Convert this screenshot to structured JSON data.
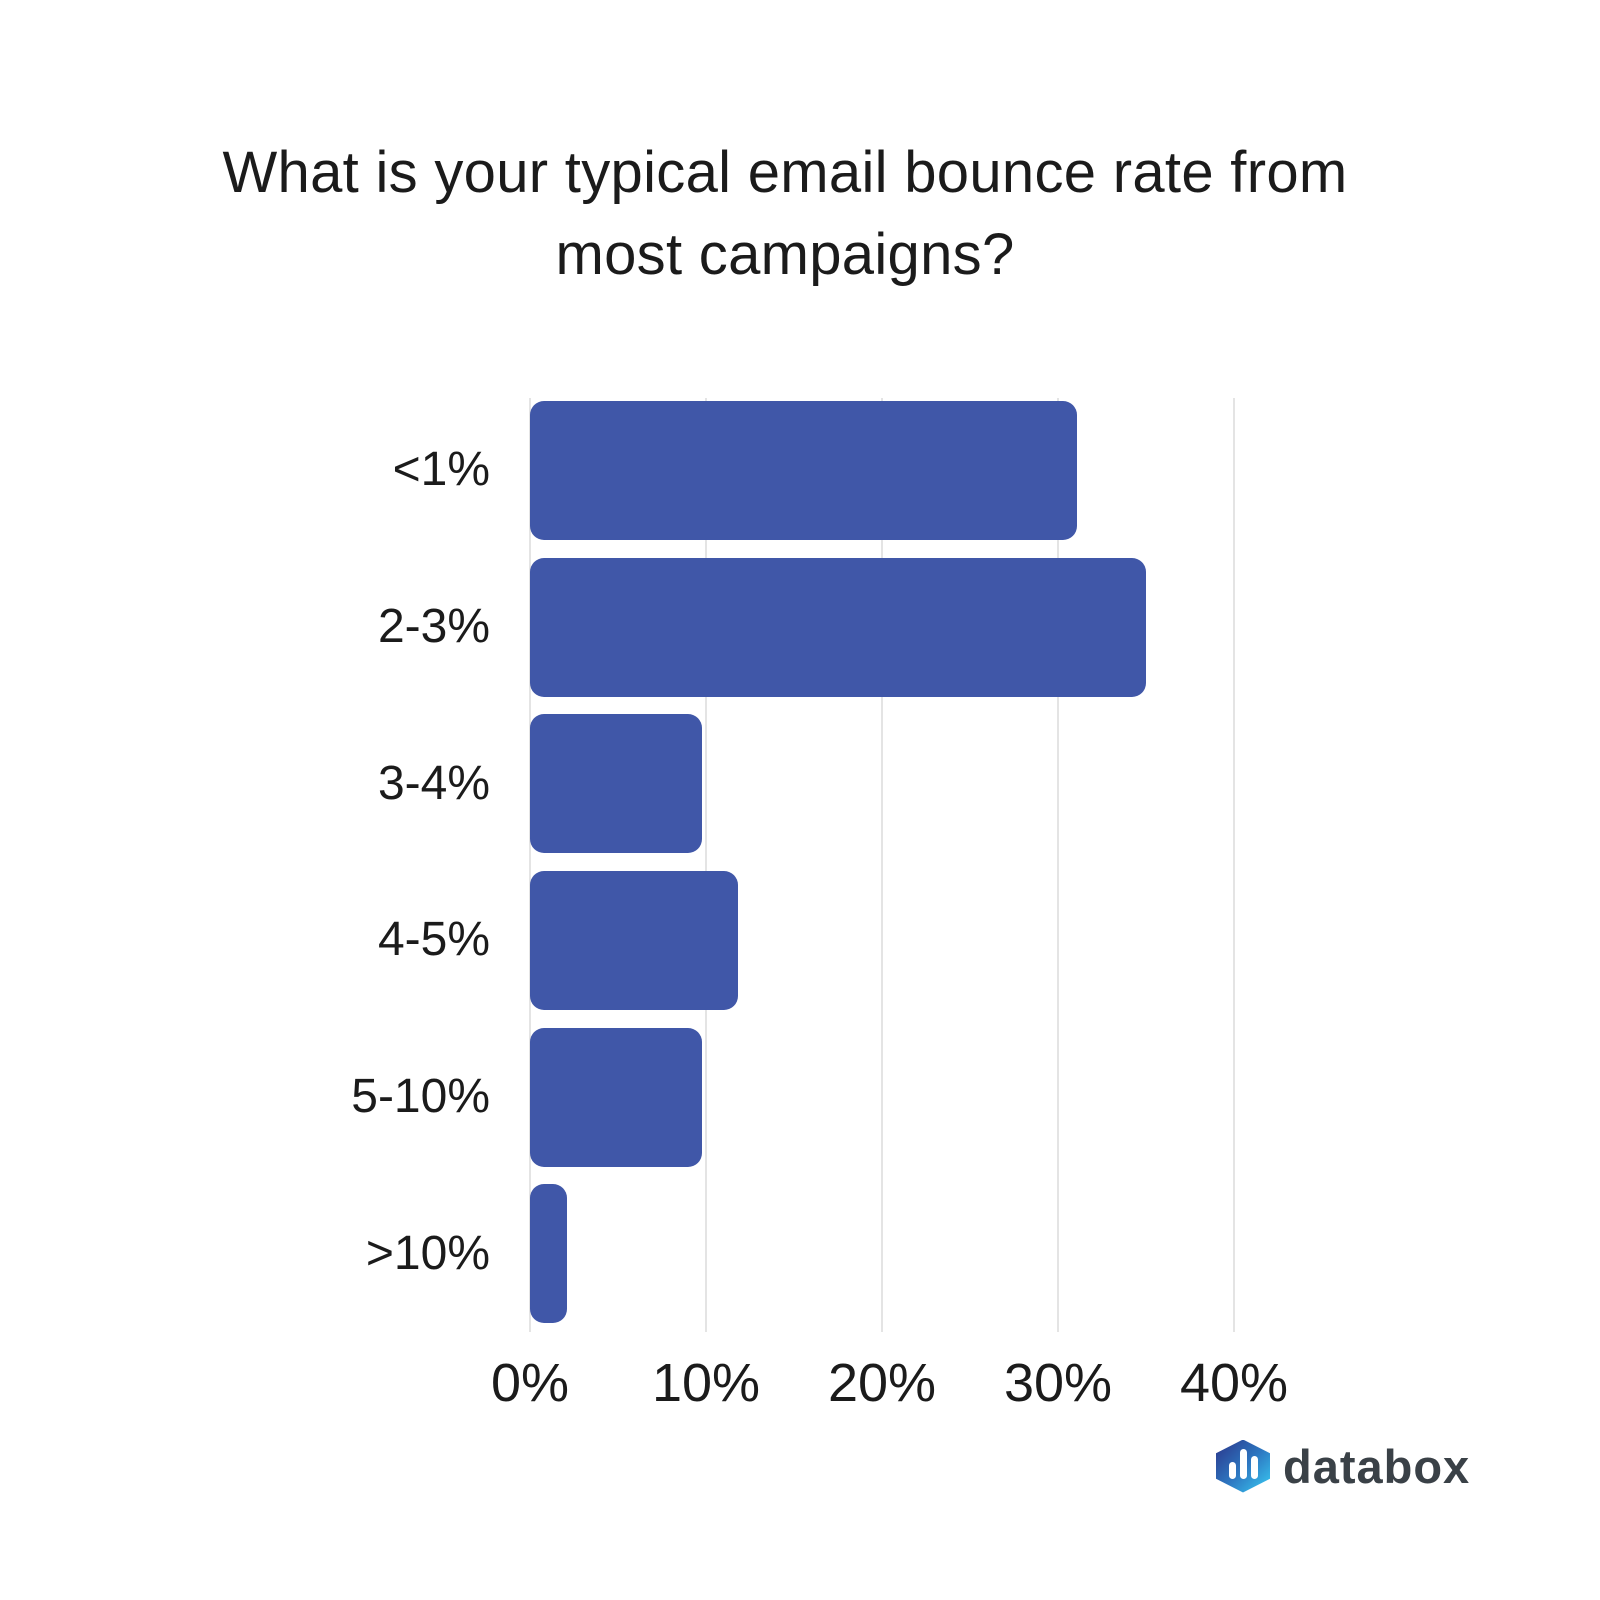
{
  "page": {
    "background": "#ffffff"
  },
  "chart_data": {
    "type": "bar",
    "orientation": "horizontal",
    "title": "What is your typical email bounce rate from most campaigns?",
    "title_lines": [
      "What is your typical email bounce rate from",
      "most campaigns?"
    ],
    "categories": [
      "<1%",
      "2-3%",
      "3-4%",
      "4-5%",
      "5-10%",
      ">10%"
    ],
    "values": [
      31.1,
      35.0,
      9.8,
      11.8,
      9.8,
      2.1
    ],
    "xlabel": "",
    "ylabel": "",
    "x_ticks": [
      "0%",
      "10%",
      "20%",
      "30%",
      "40%"
    ],
    "x_tick_values": [
      0,
      10,
      20,
      30,
      40
    ],
    "xlim": [
      0,
      45
    ],
    "grid": "vertical-only",
    "legend_position": "none",
    "bar_color": "#4057a8",
    "gridline_color": "#e4e4e4",
    "text_color": "#1b1b1b"
  },
  "branding": {
    "logo_text": "databox",
    "logo_icon": "databox-hexagon-chart-icon",
    "logo_text_color": "#3a4147",
    "logo_gradient_start": "#2b3e91",
    "logo_gradient_end": "#38c6f0"
  }
}
